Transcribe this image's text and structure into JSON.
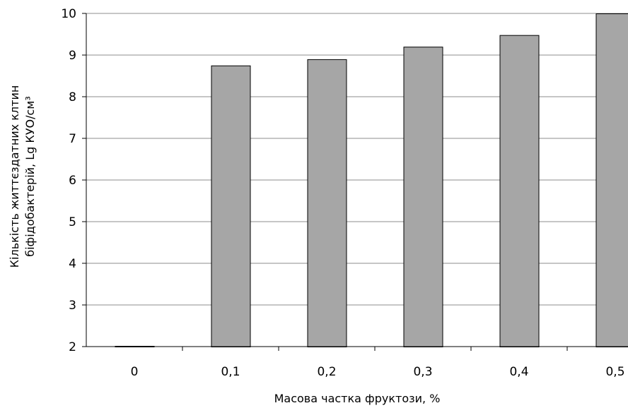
{
  "chart_data": {
    "type": "bar",
    "categories": [
      "0",
      "0,1",
      "0,2",
      "0,3",
      "0,4",
      "0,5"
    ],
    "values": [
      2.0,
      8.75,
      8.9,
      9.2,
      9.48,
      10.0
    ],
    "title": "",
    "xlabel": "Масова частка фруктози, %",
    "ylabel_line1": "Кількість життєздатних клтин",
    "ylabel_line2": "біфідобактерій,  Lg КУО/см³",
    "ylim": [
      2,
      10
    ],
    "yticks": [
      "2",
      "3",
      "4",
      "5",
      "6",
      "7",
      "8",
      "9",
      "10"
    ],
    "grid": true,
    "colors": {
      "bar_fill": "#a6a6a6",
      "bar_stroke": "#000000",
      "grid": "#8c8c8c",
      "axis": "#000000"
    }
  }
}
